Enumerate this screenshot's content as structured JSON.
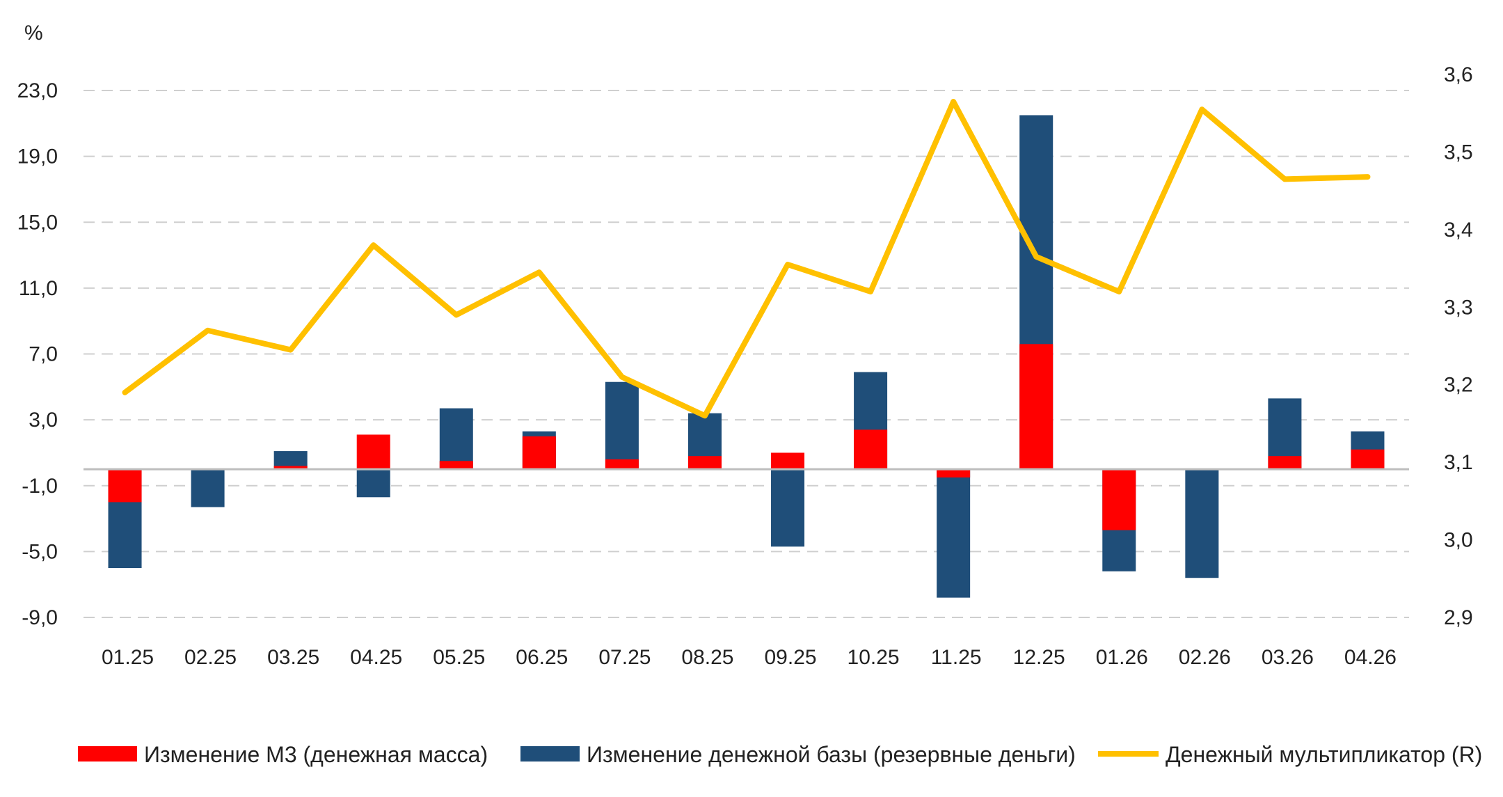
{
  "chart_data": {
    "type": "bar",
    "y_unit_label": "%",
    "categories": [
      "01.25",
      "02.25",
      "03.25",
      "04.25",
      "05.25",
      "06.25",
      "07.25",
      "08.25",
      "09.25",
      "10.25",
      "11.25",
      "12.25",
      "01.26",
      "02.26",
      "03.26",
      "04.26"
    ],
    "series": [
      {
        "name": "Изменение М3 (денежная масса)",
        "type": "bar",
        "axis": "left",
        "color": "#ff0000",
        "values": [
          -2.0,
          0.0,
          0.2,
          2.1,
          0.5,
          2.0,
          0.6,
          0.8,
          1.0,
          2.4,
          -0.5,
          7.6,
          -3.7,
          0.0,
          0.8,
          1.2
        ]
      },
      {
        "name": "Изменение денежной базы (резервные деньги)",
        "type": "bar",
        "axis": "left",
        "color": "#1f4e79",
        "values": [
          -6.0,
          -2.3,
          1.1,
          -1.7,
          3.7,
          2.3,
          5.3,
          3.4,
          -4.7,
          5.9,
          -7.8,
          21.5,
          -6.2,
          -6.6,
          4.3,
          2.3
        ]
      },
      {
        "name": "Денежный мультипликатор (R)",
        "type": "line",
        "axis": "right",
        "color": "#ffc000",
        "values": [
          3.19,
          3.27,
          3.245,
          3.38,
          3.29,
          3.345,
          3.21,
          3.16,
          3.355,
          3.32,
          3.565,
          3.365,
          3.32,
          3.555,
          3.465,
          3.468
        ]
      }
    ],
    "y_left": {
      "min": -9.0,
      "max": 23.0,
      "ticks": [
        "23,0",
        "19,0",
        "15,0",
        "11,0",
        "7,0",
        "3,0",
        "-1,0",
        "-5,0",
        "-9,0"
      ],
      "tick_values": [
        23,
        19,
        15,
        11,
        7,
        3,
        -1,
        -5,
        -9
      ]
    },
    "y_right": {
      "min": 2.9,
      "max": 3.6,
      "ticks": [
        "3,6",
        "3,5",
        "3,4",
        "3,3",
        "3,2",
        "3,1",
        "3,0",
        "2,9"
      ],
      "tick_values": [
        3.6,
        3.5,
        3.4,
        3.3,
        3.2,
        3.1,
        3.0,
        2.9
      ]
    },
    "grid": true,
    "legend_position": "bottom"
  }
}
